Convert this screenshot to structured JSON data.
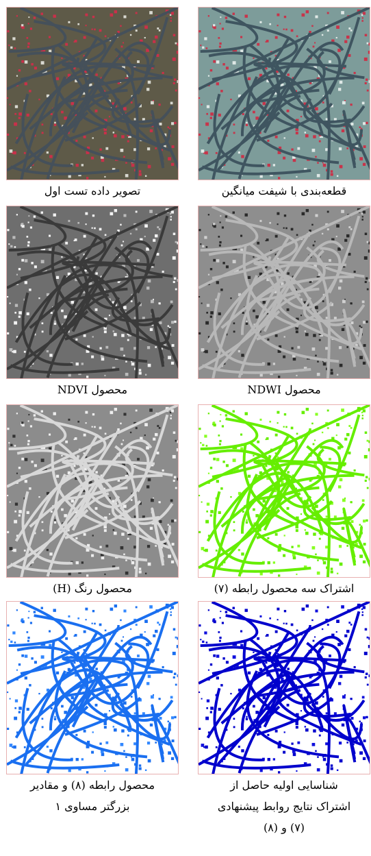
{
  "panels": [
    {
      "caption": [
        "قطعه‌بندی با شیفت میانگین"
      ]
    },
    {
      "caption": [
        "تصویر داده تست اول"
      ]
    },
    {
      "caption": [
        "محصول NDWI"
      ]
    },
    {
      "caption": [
        "محصول NDVI"
      ]
    },
    {
      "caption": [
        "اشتراک سه محصول رابطه (۷)"
      ]
    },
    {
      "caption": [
        "محصول رنگ (H)"
      ]
    },
    {
      "caption": [
        "شناسایی اولیه حاصل از",
        "اشتراک نتایج روابط پیشنهادی",
        "(۷) و (۸)"
      ]
    },
    {
      "caption": [
        "محصول رابطه (۸) و مقادیر",
        "بزرگتر مساوی ۱"
      ]
    }
  ]
}
